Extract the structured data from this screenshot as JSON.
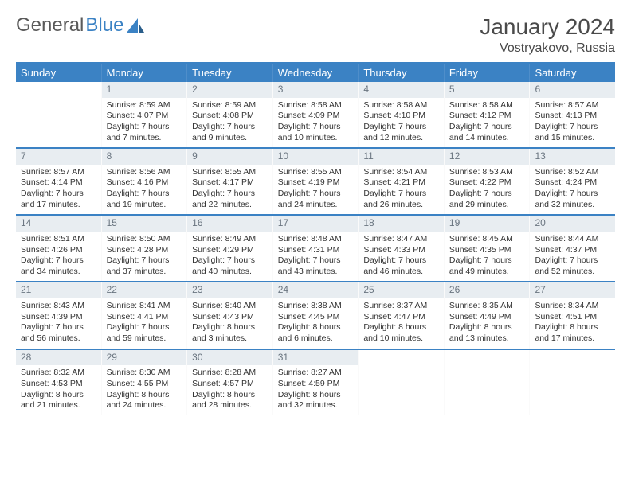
{
  "brand": {
    "text1": "General",
    "text2": "Blue"
  },
  "title": "January 2024",
  "subtitle": "Vostryakovo, Russia",
  "colors": {
    "primary": "#3b82c4",
    "daynum_bg": "#e8edf1",
    "daynum_fg": "#6a7580",
    "text": "#333333",
    "header_text": "#4a4a4a"
  },
  "headers": [
    "Sunday",
    "Monday",
    "Tuesday",
    "Wednesday",
    "Thursday",
    "Friday",
    "Saturday"
  ],
  "weeks": [
    [
      {
        "n": "",
        "l1": "",
        "l2": "",
        "l3": "",
        "l4": "",
        "empty": true
      },
      {
        "n": "1",
        "l1": "Sunrise: 8:59 AM",
        "l2": "Sunset: 4:07 PM",
        "l3": "Daylight: 7 hours",
        "l4": "and 7 minutes."
      },
      {
        "n": "2",
        "l1": "Sunrise: 8:59 AM",
        "l2": "Sunset: 4:08 PM",
        "l3": "Daylight: 7 hours",
        "l4": "and 9 minutes."
      },
      {
        "n": "3",
        "l1": "Sunrise: 8:58 AM",
        "l2": "Sunset: 4:09 PM",
        "l3": "Daylight: 7 hours",
        "l4": "and 10 minutes."
      },
      {
        "n": "4",
        "l1": "Sunrise: 8:58 AM",
        "l2": "Sunset: 4:10 PM",
        "l3": "Daylight: 7 hours",
        "l4": "and 12 minutes."
      },
      {
        "n": "5",
        "l1": "Sunrise: 8:58 AM",
        "l2": "Sunset: 4:12 PM",
        "l3": "Daylight: 7 hours",
        "l4": "and 14 minutes."
      },
      {
        "n": "6",
        "l1": "Sunrise: 8:57 AM",
        "l2": "Sunset: 4:13 PM",
        "l3": "Daylight: 7 hours",
        "l4": "and 15 minutes."
      }
    ],
    [
      {
        "n": "7",
        "l1": "Sunrise: 8:57 AM",
        "l2": "Sunset: 4:14 PM",
        "l3": "Daylight: 7 hours",
        "l4": "and 17 minutes."
      },
      {
        "n": "8",
        "l1": "Sunrise: 8:56 AM",
        "l2": "Sunset: 4:16 PM",
        "l3": "Daylight: 7 hours",
        "l4": "and 19 minutes."
      },
      {
        "n": "9",
        "l1": "Sunrise: 8:55 AM",
        "l2": "Sunset: 4:17 PM",
        "l3": "Daylight: 7 hours",
        "l4": "and 22 minutes."
      },
      {
        "n": "10",
        "l1": "Sunrise: 8:55 AM",
        "l2": "Sunset: 4:19 PM",
        "l3": "Daylight: 7 hours",
        "l4": "and 24 minutes."
      },
      {
        "n": "11",
        "l1": "Sunrise: 8:54 AM",
        "l2": "Sunset: 4:21 PM",
        "l3": "Daylight: 7 hours",
        "l4": "and 26 minutes."
      },
      {
        "n": "12",
        "l1": "Sunrise: 8:53 AM",
        "l2": "Sunset: 4:22 PM",
        "l3": "Daylight: 7 hours",
        "l4": "and 29 minutes."
      },
      {
        "n": "13",
        "l1": "Sunrise: 8:52 AM",
        "l2": "Sunset: 4:24 PM",
        "l3": "Daylight: 7 hours",
        "l4": "and 32 minutes."
      }
    ],
    [
      {
        "n": "14",
        "l1": "Sunrise: 8:51 AM",
        "l2": "Sunset: 4:26 PM",
        "l3": "Daylight: 7 hours",
        "l4": "and 34 minutes."
      },
      {
        "n": "15",
        "l1": "Sunrise: 8:50 AM",
        "l2": "Sunset: 4:28 PM",
        "l3": "Daylight: 7 hours",
        "l4": "and 37 minutes."
      },
      {
        "n": "16",
        "l1": "Sunrise: 8:49 AM",
        "l2": "Sunset: 4:29 PM",
        "l3": "Daylight: 7 hours",
        "l4": "and 40 minutes."
      },
      {
        "n": "17",
        "l1": "Sunrise: 8:48 AM",
        "l2": "Sunset: 4:31 PM",
        "l3": "Daylight: 7 hours",
        "l4": "and 43 minutes."
      },
      {
        "n": "18",
        "l1": "Sunrise: 8:47 AM",
        "l2": "Sunset: 4:33 PM",
        "l3": "Daylight: 7 hours",
        "l4": "and 46 minutes."
      },
      {
        "n": "19",
        "l1": "Sunrise: 8:45 AM",
        "l2": "Sunset: 4:35 PM",
        "l3": "Daylight: 7 hours",
        "l4": "and 49 minutes."
      },
      {
        "n": "20",
        "l1": "Sunrise: 8:44 AM",
        "l2": "Sunset: 4:37 PM",
        "l3": "Daylight: 7 hours",
        "l4": "and 52 minutes."
      }
    ],
    [
      {
        "n": "21",
        "l1": "Sunrise: 8:43 AM",
        "l2": "Sunset: 4:39 PM",
        "l3": "Daylight: 7 hours",
        "l4": "and 56 minutes."
      },
      {
        "n": "22",
        "l1": "Sunrise: 8:41 AM",
        "l2": "Sunset: 4:41 PM",
        "l3": "Daylight: 7 hours",
        "l4": "and 59 minutes."
      },
      {
        "n": "23",
        "l1": "Sunrise: 8:40 AM",
        "l2": "Sunset: 4:43 PM",
        "l3": "Daylight: 8 hours",
        "l4": "and 3 minutes."
      },
      {
        "n": "24",
        "l1": "Sunrise: 8:38 AM",
        "l2": "Sunset: 4:45 PM",
        "l3": "Daylight: 8 hours",
        "l4": "and 6 minutes."
      },
      {
        "n": "25",
        "l1": "Sunrise: 8:37 AM",
        "l2": "Sunset: 4:47 PM",
        "l3": "Daylight: 8 hours",
        "l4": "and 10 minutes."
      },
      {
        "n": "26",
        "l1": "Sunrise: 8:35 AM",
        "l2": "Sunset: 4:49 PM",
        "l3": "Daylight: 8 hours",
        "l4": "and 13 minutes."
      },
      {
        "n": "27",
        "l1": "Sunrise: 8:34 AM",
        "l2": "Sunset: 4:51 PM",
        "l3": "Daylight: 8 hours",
        "l4": "and 17 minutes."
      }
    ],
    [
      {
        "n": "28",
        "l1": "Sunrise: 8:32 AM",
        "l2": "Sunset: 4:53 PM",
        "l3": "Daylight: 8 hours",
        "l4": "and 21 minutes."
      },
      {
        "n": "29",
        "l1": "Sunrise: 8:30 AM",
        "l2": "Sunset: 4:55 PM",
        "l3": "Daylight: 8 hours",
        "l4": "and 24 minutes."
      },
      {
        "n": "30",
        "l1": "Sunrise: 8:28 AM",
        "l2": "Sunset: 4:57 PM",
        "l3": "Daylight: 8 hours",
        "l4": "and 28 minutes."
      },
      {
        "n": "31",
        "l1": "Sunrise: 8:27 AM",
        "l2": "Sunset: 4:59 PM",
        "l3": "Daylight: 8 hours",
        "l4": "and 32 minutes."
      },
      {
        "n": "",
        "l1": "",
        "l2": "",
        "l3": "",
        "l4": "",
        "empty": true
      },
      {
        "n": "",
        "l1": "",
        "l2": "",
        "l3": "",
        "l4": "",
        "empty": true
      },
      {
        "n": "",
        "l1": "",
        "l2": "",
        "l3": "",
        "l4": "",
        "empty": true
      }
    ]
  ]
}
